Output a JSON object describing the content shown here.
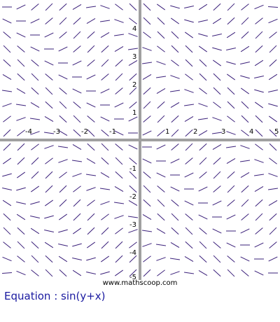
{
  "chart_data": {
    "type": "slope-field",
    "equation": "sin(y+x)",
    "xlim": [
      -5,
      5
    ],
    "ylim": [
      -5,
      5
    ],
    "step": 0.5,
    "x_ticks": [
      "-4",
      "-3",
      "-2",
      "-1",
      "1",
      "2",
      "3",
      "4",
      "5"
    ],
    "y_ticks": [
      "4",
      "3",
      "2",
      "1",
      "-1",
      "-2",
      "-3",
      "-4",
      "-5"
    ],
    "grid": false
  },
  "footer": {
    "credit": "www.mathscoop.com",
    "equation_label": "Equation : sin(y+x)"
  },
  "colors": {
    "segment": "#3a1f7a",
    "axes": "#a0a0a0",
    "text": "#000000",
    "equation": "#1a1aa0"
  }
}
